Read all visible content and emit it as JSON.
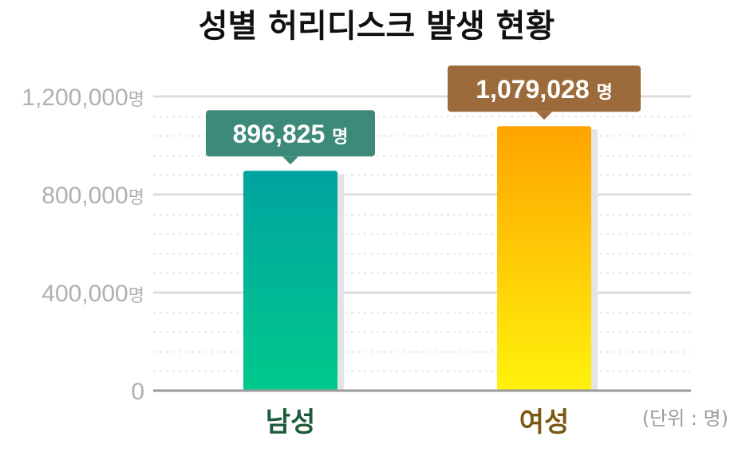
{
  "chart_data": {
    "type": "bar",
    "title": "성별 허리디스크 발생 현황",
    "categories": [
      "남성",
      "여성"
    ],
    "values": [
      896825,
      1079028
    ],
    "value_labels": [
      "896,825",
      "1,079,028"
    ],
    "value_unit": "명",
    "ylim": [
      0,
      1200000
    ],
    "yticks": [
      {
        "value": 0,
        "label": "0",
        "unit": ""
      },
      {
        "value": 400000,
        "label": "400,000",
        "unit": "명"
      },
      {
        "value": 800000,
        "label": "800,000",
        "unit": "명"
      },
      {
        "value": 1200000,
        "label": "1,200,000",
        "unit": "명"
      }
    ],
    "grid": true,
    "unit_note": "(단위 : 명)",
    "colors": {
      "bar_gradients": [
        [
          "#00a3a0",
          "#00c98c"
        ],
        [
          "#ffa400",
          "#fff20c"
        ]
      ],
      "callouts": [
        "#3d8a7a",
        "#9c6b3c"
      ],
      "category_text": [
        "#1e5b3b",
        "#7a5a10"
      ],
      "grid_major": "#dddddd",
      "grid_minor": "#e6e6e6",
      "baseline": "#9a9a9a"
    }
  }
}
